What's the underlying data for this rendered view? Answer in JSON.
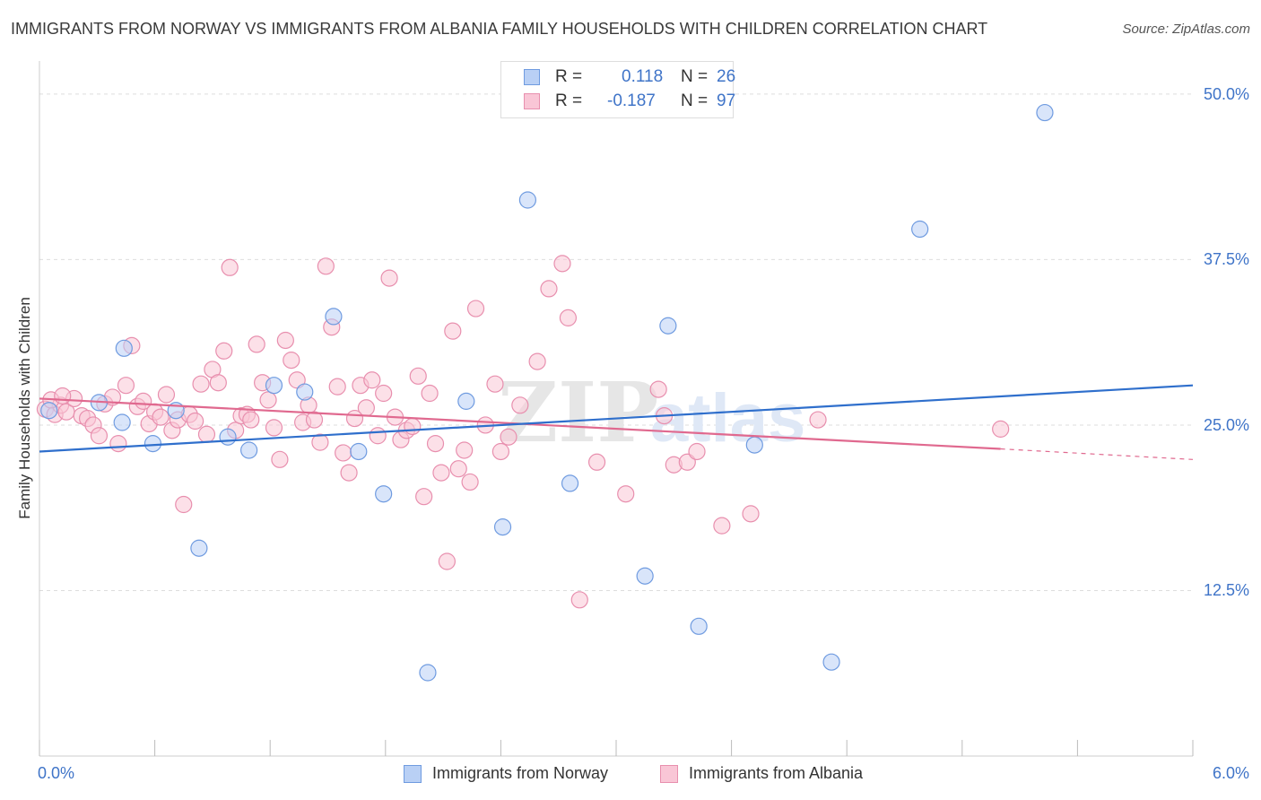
{
  "header": {
    "title": "IMMIGRANTS FROM NORWAY VS IMMIGRANTS FROM ALBANIA FAMILY HOUSEHOLDS WITH CHILDREN CORRELATION CHART",
    "source": "Source: ZipAtlas.com"
  },
  "watermark": {
    "zip": "ZIP",
    "atlas": "atlas"
  },
  "stats": {
    "r_label": "R =",
    "n_label": "N =",
    "rows": [
      {
        "r": "0.118",
        "n": "26",
        "swatch_fill": "#b9d0f5",
        "swatch_border": "#6f9be0"
      },
      {
        "r": "-0.187",
        "n": "97",
        "swatch_fill": "#f9c6d6",
        "swatch_border": "#e88fae"
      }
    ]
  },
  "legend": {
    "items": [
      {
        "label": "Immigrants from Norway",
        "fill": "#b9d0f5",
        "border": "#6f9be0"
      },
      {
        "label": "Immigrants from Albania",
        "fill": "#f9c6d6",
        "border": "#e88fae"
      }
    ]
  },
  "colors": {
    "norway_fill": "#b9d0f5",
    "norway_stroke": "#6f9be0",
    "norway_line": "#2f6fcc",
    "albania_fill": "#f9c6d6",
    "albania_stroke": "#e88fae",
    "albania_line": "#e0698f",
    "grid": "#dddddd",
    "tick_label": "#3f74c8"
  },
  "chart_data": {
    "type": "scatter",
    "ylabel": "Family Households with Children",
    "xlim": [
      0,
      6
    ],
    "ylim": [
      0,
      52.5
    ],
    "x_tick_labels": [
      {
        "value": 0,
        "label": "0.0%"
      },
      {
        "value": 6,
        "label": "6.0%"
      }
    ],
    "y_tick_labels": [
      {
        "value": 12.5,
        "label": "12.5%"
      },
      {
        "value": 25,
        "label": "25.0%"
      },
      {
        "value": 37.5,
        "label": "37.5%"
      },
      {
        "value": 50,
        "label": "50.0%"
      }
    ],
    "y_gridlines": [
      12.5,
      25,
      37.5,
      50
    ],
    "series": [
      {
        "name": "Immigrants from Norway",
        "r": 0.118,
        "n": 26,
        "trend": {
          "x": [
            0,
            6
          ],
          "y": [
            23.0,
            28.0
          ]
        },
        "points": [
          {
            "x": 0.05,
            "y": 26.1
          },
          {
            "x": 0.31,
            "y": 26.7
          },
          {
            "x": 0.44,
            "y": 30.8
          },
          {
            "x": 0.43,
            "y": 25.2
          },
          {
            "x": 0.59,
            "y": 23.6
          },
          {
            "x": 0.71,
            "y": 26.1
          },
          {
            "x": 0.83,
            "y": 15.7
          },
          {
            "x": 0.98,
            "y": 24.1
          },
          {
            "x": 1.09,
            "y": 23.1
          },
          {
            "x": 1.22,
            "y": 28.0
          },
          {
            "x": 1.38,
            "y": 27.5
          },
          {
            "x": 1.53,
            "y": 33.2
          },
          {
            "x": 1.66,
            "y": 23.0
          },
          {
            "x": 1.79,
            "y": 19.8
          },
          {
            "x": 2.02,
            "y": 6.3
          },
          {
            "x": 2.22,
            "y": 26.8
          },
          {
            "x": 2.41,
            "y": 17.3
          },
          {
            "x": 2.54,
            "y": 42.0
          },
          {
            "x": 2.76,
            "y": 20.6
          },
          {
            "x": 3.15,
            "y": 13.6
          },
          {
            "x": 3.27,
            "y": 32.5
          },
          {
            "x": 3.43,
            "y": 9.8
          },
          {
            "x": 3.72,
            "y": 23.5
          },
          {
            "x": 4.12,
            "y": 7.1
          },
          {
            "x": 4.58,
            "y": 39.8
          },
          {
            "x": 5.23,
            "y": 48.6
          }
        ]
      },
      {
        "name": "Immigrants from Albania",
        "r": -0.187,
        "n": 97,
        "trend": {
          "x": [
            0,
            5.0
          ],
          "y": [
            27.0,
            23.2
          ]
        },
        "trend_dashed": {
          "x": [
            5.0,
            6
          ],
          "y": [
            23.2,
            22.4
          ]
        },
        "points": [
          {
            "x": 0.03,
            "y": 26.2
          },
          {
            "x": 0.08,
            "y": 25.8
          },
          {
            "x": 0.11,
            "y": 26.5
          },
          {
            "x": 0.14,
            "y": 26.0
          },
          {
            "x": 0.18,
            "y": 27.0
          },
          {
            "x": 0.22,
            "y": 25.7
          },
          {
            "x": 0.25,
            "y": 25.5
          },
          {
            "x": 0.28,
            "y": 25.0
          },
          {
            "x": 0.31,
            "y": 24.2
          },
          {
            "x": 0.34,
            "y": 26.6
          },
          {
            "x": 0.38,
            "y": 27.1
          },
          {
            "x": 0.41,
            "y": 23.6
          },
          {
            "x": 0.45,
            "y": 28.0
          },
          {
            "x": 0.48,
            "y": 31.0
          },
          {
            "x": 0.51,
            "y": 26.4
          },
          {
            "x": 0.54,
            "y": 26.8
          },
          {
            "x": 0.57,
            "y": 25.1
          },
          {
            "x": 0.6,
            "y": 26.0
          },
          {
            "x": 0.63,
            "y": 25.6
          },
          {
            "x": 0.66,
            "y": 27.3
          },
          {
            "x": 0.69,
            "y": 24.6
          },
          {
            "x": 0.72,
            "y": 25.4
          },
          {
            "x": 0.75,
            "y": 19.0
          },
          {
            "x": 0.78,
            "y": 25.8
          },
          {
            "x": 0.81,
            "y": 25.3
          },
          {
            "x": 0.84,
            "y": 28.1
          },
          {
            "x": 0.87,
            "y": 24.3
          },
          {
            "x": 0.9,
            "y": 29.2
          },
          {
            "x": 0.93,
            "y": 28.2
          },
          {
            "x": 0.96,
            "y": 30.6
          },
          {
            "x": 0.99,
            "y": 36.9
          },
          {
            "x": 1.02,
            "y": 24.6
          },
          {
            "x": 1.05,
            "y": 25.7
          },
          {
            "x": 1.08,
            "y": 25.8
          },
          {
            "x": 1.1,
            "y": 25.4
          },
          {
            "x": 1.13,
            "y": 31.1
          },
          {
            "x": 1.16,
            "y": 28.2
          },
          {
            "x": 1.19,
            "y": 26.9
          },
          {
            "x": 1.22,
            "y": 24.8
          },
          {
            "x": 1.25,
            "y": 22.4
          },
          {
            "x": 1.28,
            "y": 31.4
          },
          {
            "x": 1.31,
            "y": 29.9
          },
          {
            "x": 1.34,
            "y": 28.4
          },
          {
            "x": 1.37,
            "y": 25.2
          },
          {
            "x": 1.4,
            "y": 26.5
          },
          {
            "x": 1.43,
            "y": 25.4
          },
          {
            "x": 1.46,
            "y": 23.7
          },
          {
            "x": 1.49,
            "y": 37.0
          },
          {
            "x": 1.52,
            "y": 32.4
          },
          {
            "x": 1.55,
            "y": 27.9
          },
          {
            "x": 1.58,
            "y": 22.9
          },
          {
            "x": 1.61,
            "y": 21.4
          },
          {
            "x": 1.64,
            "y": 25.5
          },
          {
            "x": 1.67,
            "y": 28.0
          },
          {
            "x": 1.7,
            "y": 26.3
          },
          {
            "x": 1.73,
            "y": 28.4
          },
          {
            "x": 1.76,
            "y": 24.2
          },
          {
            "x": 1.79,
            "y": 27.4
          },
          {
            "x": 1.82,
            "y": 36.1
          },
          {
            "x": 1.85,
            "y": 25.6
          },
          {
            "x": 1.88,
            "y": 23.9
          },
          {
            "x": 1.91,
            "y": 24.6
          },
          {
            "x": 1.94,
            "y": 24.9
          },
          {
            "x": 1.97,
            "y": 28.7
          },
          {
            "x": 2.0,
            "y": 19.6
          },
          {
            "x": 2.03,
            "y": 27.4
          },
          {
            "x": 2.06,
            "y": 23.6
          },
          {
            "x": 2.09,
            "y": 21.4
          },
          {
            "x": 2.12,
            "y": 14.7
          },
          {
            "x": 2.15,
            "y": 32.1
          },
          {
            "x": 2.18,
            "y": 21.7
          },
          {
            "x": 2.21,
            "y": 23.1
          },
          {
            "x": 2.24,
            "y": 20.7
          },
          {
            "x": 2.27,
            "y": 33.8
          },
          {
            "x": 2.32,
            "y": 25.0
          },
          {
            "x": 2.37,
            "y": 28.1
          },
          {
            "x": 2.4,
            "y": 23.0
          },
          {
            "x": 2.44,
            "y": 24.1
          },
          {
            "x": 2.5,
            "y": 26.5
          },
          {
            "x": 2.59,
            "y": 29.8
          },
          {
            "x": 2.65,
            "y": 35.3
          },
          {
            "x": 2.72,
            "y": 37.2
          },
          {
            "x": 2.75,
            "y": 33.1
          },
          {
            "x": 2.81,
            "y": 11.8
          },
          {
            "x": 2.9,
            "y": 22.2
          },
          {
            "x": 3.05,
            "y": 19.8
          },
          {
            "x": 3.22,
            "y": 27.7
          },
          {
            "x": 3.25,
            "y": 25.7
          },
          {
            "x": 3.3,
            "y": 22.0
          },
          {
            "x": 3.37,
            "y": 22.2
          },
          {
            "x": 3.42,
            "y": 23.0
          },
          {
            "x": 3.55,
            "y": 17.4
          },
          {
            "x": 3.7,
            "y": 18.3
          },
          {
            "x": 4.05,
            "y": 25.4
          },
          {
            "x": 5.0,
            "y": 24.7
          },
          {
            "x": 0.06,
            "y": 26.9
          },
          {
            "x": 0.12,
            "y": 27.2
          }
        ]
      }
    ]
  }
}
